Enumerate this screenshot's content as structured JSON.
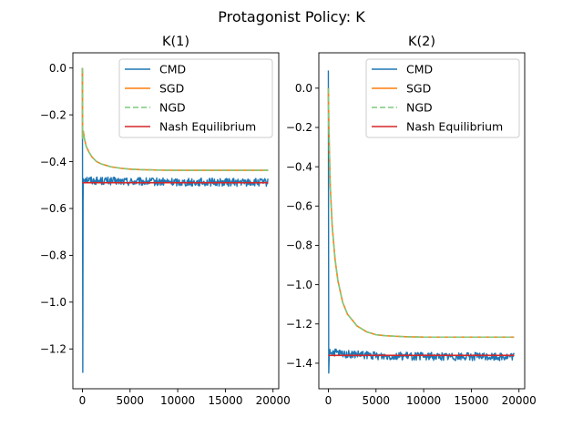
{
  "figure_title": "Protagonist Policy: K",
  "chart_data": [
    {
      "type": "line",
      "title": "K(1)",
      "xlabel": "",
      "ylabel": "",
      "xlim": [
        -1000,
        20600
      ],
      "ylim": [
        -1.37,
        0.065
      ],
      "xticks": [
        0,
        5000,
        10000,
        15000,
        20000
      ],
      "xtick_labels": [
        "0",
        "5000",
        "10000",
        "15000",
        "20000"
      ],
      "yticks": [
        0.0,
        -0.2,
        -0.4,
        -0.6,
        -0.8,
        -1.0,
        -1.2
      ],
      "ytick_labels": [
        "0.0",
        "−0.2",
        "−0.4",
        "−0.6",
        "−0.8",
        "−1.0",
        "−1.2"
      ],
      "legend_position": "upper-right",
      "series": [
        {
          "name": "CMD",
          "color": "#1f77b4",
          "dash": "solid",
          "x": [
            0,
            40,
            70,
            100,
            200,
            500,
            1000,
            2000,
            5000,
            10000,
            15000,
            19500
          ],
          "y": [
            0.0,
            -1.3,
            -0.57,
            -0.47,
            -0.47,
            -0.475,
            -0.48,
            -0.482,
            -0.485,
            -0.487,
            -0.488,
            -0.489
          ]
        },
        {
          "name": "SGD",
          "color": "#ff7f0e",
          "dash": "solid",
          "x": [
            0,
            20,
            100,
            200,
            400,
            700,
            1000,
            1500,
            2000,
            3000,
            4000,
            5000,
            6000,
            8000,
            10000,
            12500,
            15000,
            17500,
            19500
          ],
          "y": [
            0.0,
            -0.3,
            -0.27,
            -0.3,
            -0.335,
            -0.36,
            -0.38,
            -0.4,
            -0.41,
            -0.422,
            -0.428,
            -0.432,
            -0.434,
            -0.436,
            -0.437,
            -0.437,
            -0.437,
            -0.437,
            -0.437
          ]
        },
        {
          "name": "NGD",
          "color": "#7fc97f",
          "dash": "dashed",
          "x": [
            0,
            20,
            100,
            200,
            400,
            700,
            1000,
            1500,
            2000,
            3000,
            4000,
            5000,
            6000,
            8000,
            10000,
            12500,
            15000,
            17500,
            19500
          ],
          "y": [
            0.0,
            -0.3,
            -0.27,
            -0.3,
            -0.335,
            -0.36,
            -0.38,
            -0.4,
            -0.41,
            -0.422,
            -0.428,
            -0.432,
            -0.434,
            -0.436,
            -0.437,
            -0.437,
            -0.437,
            -0.437,
            -0.437
          ]
        },
        {
          "name": "Nash Equilibrium",
          "color": "#d62728",
          "dash": "solid",
          "x": [
            0,
            19500
          ],
          "y": [
            -0.49,
            -0.49
          ]
        }
      ]
    },
    {
      "type": "line",
      "title": "K(2)",
      "xlabel": "",
      "ylabel": "",
      "xlim": [
        -1000,
        20600
      ],
      "ylim": [
        -1.53,
        0.18
      ],
      "xticks": [
        0,
        5000,
        10000,
        15000,
        20000
      ],
      "xtick_labels": [
        "0",
        "5000",
        "10000",
        "15000",
        "20000"
      ],
      "yticks": [
        0.0,
        -0.2,
        -0.4,
        -0.6,
        -0.8,
        -1.0,
        -1.2,
        -1.4
      ],
      "ytick_labels": [
        "0.0",
        "−0.2",
        "−0.4",
        "−0.6",
        "−0.8",
        "−1.0",
        "−1.2",
        "−1.4"
      ],
      "legend_position": "upper-right",
      "series": [
        {
          "name": "CMD",
          "color": "#1f77b4",
          "dash": "solid",
          "x": [
            0,
            40,
            70,
            100,
            200,
            500,
            1000,
            2000,
            5000,
            10000,
            15000,
            19500
          ],
          "y": [
            0.09,
            -1.45,
            -1.4,
            -1.34,
            -1.34,
            -1.345,
            -1.35,
            -1.355,
            -1.362,
            -1.365,
            -1.366,
            -1.367
          ]
        },
        {
          "name": "SGD",
          "color": "#ff7f0e",
          "dash": "solid",
          "x": [
            0,
            50,
            200,
            400,
            700,
            1000,
            1500,
            2000,
            3000,
            4000,
            5000,
            6000,
            8000,
            10000,
            12500,
            15000,
            17500,
            19500
          ],
          "y": [
            0.0,
            -0.2,
            -0.5,
            -0.7,
            -0.87,
            -0.98,
            -1.09,
            -1.15,
            -1.21,
            -1.24,
            -1.255,
            -1.26,
            -1.265,
            -1.267,
            -1.267,
            -1.267,
            -1.267,
            -1.267
          ]
        },
        {
          "name": "NGD",
          "color": "#7fc97f",
          "dash": "dashed",
          "x": [
            0,
            50,
            200,
            400,
            700,
            1000,
            1500,
            2000,
            3000,
            4000,
            5000,
            6000,
            8000,
            10000,
            12500,
            15000,
            17500,
            19500
          ],
          "y": [
            0.0,
            -0.2,
            -0.5,
            -0.7,
            -0.87,
            -0.98,
            -1.09,
            -1.15,
            -1.21,
            -1.24,
            -1.255,
            -1.26,
            -1.265,
            -1.267,
            -1.267,
            -1.267,
            -1.267,
            -1.267
          ]
        },
        {
          "name": "Nash Equilibrium",
          "color": "#d62728",
          "dash": "solid",
          "x": [
            0,
            19500
          ],
          "y": [
            -1.36,
            -1.36
          ]
        }
      ]
    }
  ]
}
